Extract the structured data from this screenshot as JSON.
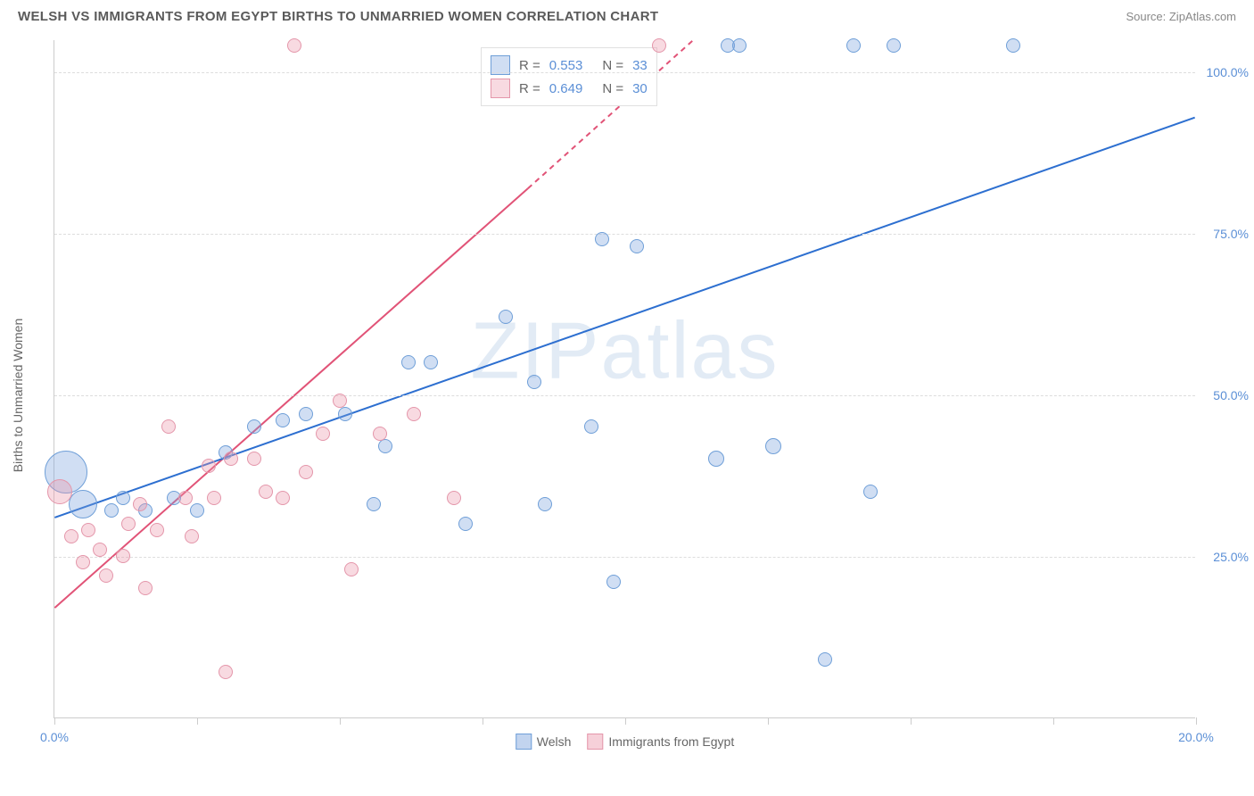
{
  "header": {
    "title": "WELSH VS IMMIGRANTS FROM EGYPT BIRTHS TO UNMARRIED WOMEN CORRELATION CHART",
    "source": "Source: ZipAtlas.com"
  },
  "chart": {
    "type": "scatter",
    "ylabel": "Births to Unmarried Women",
    "watermark": "ZIPatlas",
    "background_color": "#ffffff",
    "grid_color": "#dddddd",
    "axis_color": "#cccccc",
    "xlim": [
      0,
      20
    ],
    "ylim": [
      0,
      105
    ],
    "yticks": [
      {
        "value": 25,
        "label": "25.0%"
      },
      {
        "value": 50,
        "label": "50.0%"
      },
      {
        "value": 75,
        "label": "75.0%"
      },
      {
        "value": 100,
        "label": "100.0%"
      }
    ],
    "xticks": [
      {
        "value": 0,
        "label": "0.0%"
      },
      {
        "value": 2.5,
        "label": ""
      },
      {
        "value": 5.0,
        "label": ""
      },
      {
        "value": 7.5,
        "label": ""
      },
      {
        "value": 10.0,
        "label": ""
      },
      {
        "value": 12.5,
        "label": ""
      },
      {
        "value": 15.0,
        "label": ""
      },
      {
        "value": 17.5,
        "label": ""
      },
      {
        "value": 20,
        "label": "20.0%"
      }
    ],
    "series": [
      {
        "name": "Welsh",
        "fill_color": "rgba(120,160,220,0.35)",
        "stroke_color": "#6f9fd8",
        "line_color": "#2d6fd0",
        "r_value": "0.553",
        "n_value": "33",
        "trend": {
          "x1": 0,
          "y1": 31,
          "x2": 20,
          "y2": 93
        },
        "points": [
          {
            "x": 0.2,
            "y": 38,
            "r": 24
          },
          {
            "x": 0.5,
            "y": 33,
            "r": 16
          },
          {
            "x": 1.0,
            "y": 32,
            "r": 8
          },
          {
            "x": 1.2,
            "y": 34,
            "r": 8
          },
          {
            "x": 1.6,
            "y": 32,
            "r": 8
          },
          {
            "x": 2.1,
            "y": 34,
            "r": 8
          },
          {
            "x": 2.5,
            "y": 32,
            "r": 8
          },
          {
            "x": 3.0,
            "y": 41,
            "r": 8
          },
          {
            "x": 3.5,
            "y": 45,
            "r": 8
          },
          {
            "x": 4.0,
            "y": 46,
            "r": 8
          },
          {
            "x": 4.4,
            "y": 47,
            "r": 8
          },
          {
            "x": 5.1,
            "y": 47,
            "r": 8
          },
          {
            "x": 5.6,
            "y": 33,
            "r": 8
          },
          {
            "x": 5.8,
            "y": 42,
            "r": 8
          },
          {
            "x": 6.2,
            "y": 55,
            "r": 8
          },
          {
            "x": 6.6,
            "y": 55,
            "r": 8
          },
          {
            "x": 7.2,
            "y": 30,
            "r": 8
          },
          {
            "x": 7.9,
            "y": 62,
            "r": 8
          },
          {
            "x": 8.4,
            "y": 52,
            "r": 8
          },
          {
            "x": 8.6,
            "y": 33,
            "r": 8
          },
          {
            "x": 9.4,
            "y": 45,
            "r": 8
          },
          {
            "x": 9.6,
            "y": 74,
            "r": 8
          },
          {
            "x": 9.8,
            "y": 21,
            "r": 8
          },
          {
            "x": 10.2,
            "y": 73,
            "r": 8
          },
          {
            "x": 11.6,
            "y": 40,
            "r": 9
          },
          {
            "x": 11.8,
            "y": 104,
            "r": 8
          },
          {
            "x": 12.0,
            "y": 104,
            "r": 8
          },
          {
            "x": 12.6,
            "y": 42,
            "r": 9
          },
          {
            "x": 13.5,
            "y": 9,
            "r": 8
          },
          {
            "x": 14.0,
            "y": 104,
            "r": 8
          },
          {
            "x": 14.3,
            "y": 35,
            "r": 8
          },
          {
            "x": 14.7,
            "y": 104,
            "r": 8
          },
          {
            "x": 16.8,
            "y": 104,
            "r": 8
          }
        ]
      },
      {
        "name": "Immigrants from Egypt",
        "fill_color": "rgba(235,150,170,0.35)",
        "stroke_color": "#e496aa",
        "line_color": "#e15377",
        "r_value": "0.649",
        "n_value": "30",
        "trend_solid": {
          "x1": 0,
          "y1": 17,
          "x2": 8.3,
          "y2": 82
        },
        "trend_dashed": {
          "x1": 8.3,
          "y1": 82,
          "x2": 11.2,
          "y2": 105
        },
        "points": [
          {
            "x": 0.1,
            "y": 35,
            "r": 14
          },
          {
            "x": 0.3,
            "y": 28,
            "r": 8
          },
          {
            "x": 0.5,
            "y": 24,
            "r": 8
          },
          {
            "x": 0.6,
            "y": 29,
            "r": 8
          },
          {
            "x": 0.8,
            "y": 26,
            "r": 8
          },
          {
            "x": 0.9,
            "y": 22,
            "r": 8
          },
          {
            "x": 1.2,
            "y": 25,
            "r": 8
          },
          {
            "x": 1.3,
            "y": 30,
            "r": 8
          },
          {
            "x": 1.5,
            "y": 33,
            "r": 8
          },
          {
            "x": 1.6,
            "y": 20,
            "r": 8
          },
          {
            "x": 1.8,
            "y": 29,
            "r": 8
          },
          {
            "x": 2.0,
            "y": 45,
            "r": 8
          },
          {
            "x": 2.3,
            "y": 34,
            "r": 8
          },
          {
            "x": 2.4,
            "y": 28,
            "r": 8
          },
          {
            "x": 2.7,
            "y": 39,
            "r": 8
          },
          {
            "x": 2.8,
            "y": 34,
            "r": 8
          },
          {
            "x": 3.0,
            "y": 7,
            "r": 8
          },
          {
            "x": 3.1,
            "y": 40,
            "r": 8
          },
          {
            "x": 3.5,
            "y": 40,
            "r": 8
          },
          {
            "x": 3.7,
            "y": 35,
            "r": 8
          },
          {
            "x": 4.0,
            "y": 34,
            "r": 8
          },
          {
            "x": 4.2,
            "y": 104,
            "r": 8
          },
          {
            "x": 4.4,
            "y": 38,
            "r": 8
          },
          {
            "x": 4.7,
            "y": 44,
            "r": 8
          },
          {
            "x": 5.0,
            "y": 49,
            "r": 8
          },
          {
            "x": 5.2,
            "y": 23,
            "r": 8
          },
          {
            "x": 5.7,
            "y": 44,
            "r": 8
          },
          {
            "x": 6.3,
            "y": 47,
            "r": 8
          },
          {
            "x": 7.0,
            "y": 34,
            "r": 8
          },
          {
            "x": 10.6,
            "y": 104,
            "r": 8
          }
        ]
      }
    ],
    "bottom_legend": [
      {
        "label": "Welsh",
        "fill": "rgba(120,160,220,0.45)",
        "stroke": "#6f9fd8"
      },
      {
        "label": "Immigrants from Egypt",
        "fill": "rgba(235,150,170,0.45)",
        "stroke": "#e496aa"
      }
    ]
  }
}
